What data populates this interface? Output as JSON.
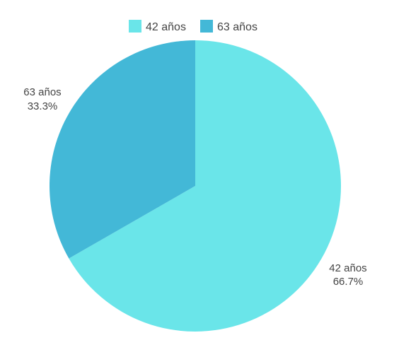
{
  "chart_data": {
    "type": "pie",
    "categories": [
      "42 años",
      "63 años"
    ],
    "values": [
      66.7,
      33.3
    ],
    "value_labels": [
      "66.7%",
      "33.3%"
    ],
    "colors": [
      "#6ae5e9",
      "#43b8d7"
    ],
    "legend_position": "top",
    "start_angle_deg": 0,
    "direction": "clockwise",
    "title": ""
  }
}
